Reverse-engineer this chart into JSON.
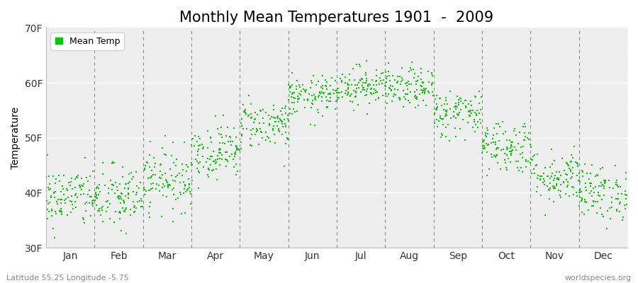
{
  "title": "Monthly Mean Temperatures 1901  -  2009",
  "ylabel": "Temperature",
  "ylim": [
    30,
    70
  ],
  "yticks": [
    30,
    40,
    50,
    60,
    70
  ],
  "ytick_labels": [
    "30F",
    "40F",
    "50F",
    "60F",
    "70F"
  ],
  "months": [
    "Jan",
    "Feb",
    "Mar",
    "Apr",
    "May",
    "Jun",
    "Jul",
    "Aug",
    "Sep",
    "Oct",
    "Nov",
    "Dec"
  ],
  "month_means_f": [
    39.2,
    39.0,
    42.5,
    47.5,
    52.5,
    57.5,
    59.5,
    59.0,
    54.5,
    48.5,
    43.0,
    40.0
  ],
  "month_stds_f": [
    2.8,
    3.0,
    2.8,
    2.5,
    2.2,
    1.8,
    1.8,
    1.8,
    2.2,
    2.5,
    2.5,
    2.5
  ],
  "num_years": 109,
  "dot_color": "#00CC00",
  "dot_size": 3,
  "bg_color": "#EEEEEE",
  "grid_color": "#FFFFFF",
  "title_fontsize": 15,
  "axis_label_fontsize": 10,
  "tick_fontsize": 10,
  "legend_label": "Mean Temp",
  "footer_left": "Latitude 55.25 Longitude -5.75",
  "footer_right": "worldspecies.org",
  "seed": 42
}
